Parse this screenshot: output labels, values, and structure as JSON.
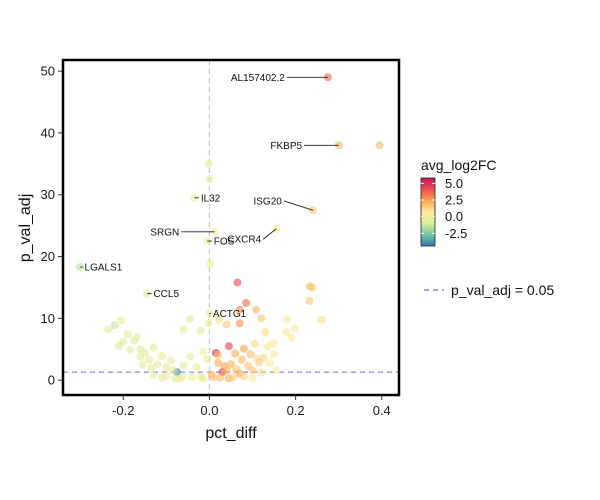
{
  "chart_data": {
    "type": "scatter",
    "xlabel": "pct_diff",
    "ylabel": "p_val_adj",
    "xlim": [
      -0.34,
      0.44
    ],
    "ylim": [
      -2.4,
      51.8
    ],
    "xticks": [
      -0.2,
      0.0,
      0.2,
      0.4
    ],
    "xtick_labels": [
      "-0.2",
      "0.0",
      "0.2",
      "0.4"
    ],
    "yticks": [
      0,
      10,
      20,
      30,
      40,
      50
    ],
    "ytick_labels": [
      "0",
      "10",
      "20",
      "30",
      "40",
      "50"
    ],
    "vline_x": 0,
    "hline": {
      "y": 1.3,
      "label": "p_val_adj = 0.05",
      "color": "#6b6bdb"
    },
    "color_legend": {
      "title": "avg_log2FC",
      "tick_values": [
        5.0,
        2.5,
        0.0,
        -2.5
      ],
      "tick_labels": [
        "5.0",
        "2.5",
        "0.0",
        "-2.5"
      ],
      "range": [
        -4.4,
        5.8
      ],
      "stops": [
        "#c2185b",
        "#e94f4f",
        "#f9a64f",
        "#fee99a",
        "#d7ee9b",
        "#74c7a5",
        "#3f74b4"
      ]
    },
    "labeled_points": [
      {
        "gene": "AL157402.2",
        "x": 0.275,
        "y": 49.0,
        "fc": 3.6,
        "text_x": 0.175,
        "text_y": 49.0
      },
      {
        "gene": "FKBP5",
        "x": 0.3,
        "y": 38.0,
        "fc": 2.0,
        "text_x": 0.215,
        "text_y": 38.0
      },
      {
        "gene": "ISG20",
        "x": 0.24,
        "y": 27.5,
        "fc": 1.7,
        "text_x": 0.168,
        "text_y": 29.0
      },
      {
        "gene": "IL32",
        "x": -0.035,
        "y": 29.5,
        "fc": -0.1,
        "text_x": -0.02,
        "text_y": 29.5
      },
      {
        "gene": "SRGN",
        "x": 0.012,
        "y": 24.0,
        "fc": 0.4,
        "text_x": -0.07,
        "text_y": 24.0
      },
      {
        "gene": "CXCR4",
        "x": 0.155,
        "y": 24.5,
        "fc": 0.6,
        "text_x": 0.12,
        "text_y": 22.8
      },
      {
        "gene": "FOS",
        "x": -0.005,
        "y": 22.5,
        "fc": 0.1,
        "text_x": 0.01,
        "text_y": 22.5
      },
      {
        "gene": "LGALS1",
        "x": -0.3,
        "y": 18.3,
        "fc": -1.5,
        "text_x": -0.29,
        "text_y": 18.3
      },
      {
        "gene": "CCL5",
        "x": -0.145,
        "y": 14.0,
        "fc": -0.6,
        "text_x": -0.13,
        "text_y": 14.0
      },
      {
        "gene": "ACTG1",
        "x": 0.0,
        "y": 10.8,
        "fc": 0.0,
        "text_x": 0.008,
        "text_y": 10.8
      }
    ],
    "points": [
      {
        "x": 0.395,
        "y": 38.0,
        "fc": 2.0
      },
      {
        "x": 0.233,
        "y": 15.2,
        "fc": 1.8
      },
      {
        "x": 0.238,
        "y": 15.0,
        "fc": 1.7
      },
      {
        "x": 0.232,
        "y": 12.8,
        "fc": 1.5
      },
      {
        "x": 0.26,
        "y": 9.8,
        "fc": 1.0
      },
      {
        "x": 0.18,
        "y": 9.8,
        "fc": 0.8
      },
      {
        "x": 0.198,
        "y": 8.4,
        "fc": 0.6
      },
      {
        "x": 0.178,
        "y": 7.8,
        "fc": 0.5
      },
      {
        "x": 0.19,
        "y": 6.9,
        "fc": 0.7
      },
      {
        "x": 0.148,
        "y": 6.0,
        "fc": 0.4
      },
      {
        "x": 0.13,
        "y": 7.8,
        "fc": 1.2
      },
      {
        "x": 0.085,
        "y": 12.5,
        "fc": 3.5
      },
      {
        "x": 0.07,
        "y": 11.4,
        "fc": 3.0
      },
      {
        "x": 0.065,
        "y": 15.8,
        "fc": 4.2
      },
      {
        "x": 0.108,
        "y": 11.4,
        "fc": 2.0
      },
      {
        "x": 0.12,
        "y": 10.0,
        "fc": 1.6
      },
      {
        "x": 0.07,
        "y": 9.2,
        "fc": 2.8
      },
      {
        "x": 0.04,
        "y": 9.0,
        "fc": 1.5
      },
      {
        "x": 0.022,
        "y": 9.8,
        "fc": 1.0
      },
      {
        "x": -0.002,
        "y": 35.0,
        "fc": 0.0
      },
      {
        "x": 0.0,
        "y": 32.5,
        "fc": -0.2
      },
      {
        "x": 0.002,
        "y": 18.8,
        "fc": 0.1
      },
      {
        "x": -0.002,
        "y": 9.2,
        "fc": -0.3
      },
      {
        "x": -0.045,
        "y": 9.9,
        "fc": -0.5
      },
      {
        "x": -0.06,
        "y": 8.2,
        "fc": -0.4
      },
      {
        "x": -0.02,
        "y": 8.0,
        "fc": -0.3
      },
      {
        "x": 0.045,
        "y": 5.5,
        "fc": 4.4
      },
      {
        "x": 0.015,
        "y": 4.4,
        "fc": 5.3
      },
      {
        "x": -0.075,
        "y": 1.3,
        "fc": -4.0
      },
      {
        "x": -0.22,
        "y": 8.9,
        "fc": -1.4
      },
      {
        "x": -0.235,
        "y": 8.2,
        "fc": -0.5
      },
      {
        "x": -0.205,
        "y": 9.7,
        "fc": -0.6
      },
      {
        "x": -0.19,
        "y": 7.4,
        "fc": -0.5
      },
      {
        "x": -0.175,
        "y": 6.4,
        "fc": -0.7
      },
      {
        "x": -0.16,
        "y": 5.0,
        "fc": -0.8
      },
      {
        "x": -0.168,
        "y": 7.0,
        "fc": -0.3
      },
      {
        "x": -0.2,
        "y": 6.2,
        "fc": -0.6
      },
      {
        "x": -0.21,
        "y": 5.6,
        "fc": -0.3
      },
      {
        "x": -0.185,
        "y": 4.9,
        "fc": -0.4
      },
      {
        "x": -0.15,
        "y": 4.4,
        "fc": -0.3
      },
      {
        "x": -0.14,
        "y": 3.3,
        "fc": -0.5
      },
      {
        "x": -0.13,
        "y": 5.3,
        "fc": -0.4
      },
      {
        "x": -0.16,
        "y": 3.8,
        "fc": -0.4
      },
      {
        "x": -0.12,
        "y": 2.6,
        "fc": -0.3
      },
      {
        "x": -0.11,
        "y": 3.9,
        "fc": -0.2
      },
      {
        "x": -0.1,
        "y": 2.1,
        "fc": -0.3
      },
      {
        "x": -0.09,
        "y": 3.2,
        "fc": -0.2
      },
      {
        "x": -0.085,
        "y": 1.6,
        "fc": -0.4
      },
      {
        "x": -0.06,
        "y": 2.4,
        "fc": -0.1
      },
      {
        "x": -0.045,
        "y": 3.8,
        "fc": -0.3
      },
      {
        "x": -0.03,
        "y": 2.1,
        "fc": 0.0
      },
      {
        "x": -0.015,
        "y": 4.6,
        "fc": 0.1
      },
      {
        "x": -0.005,
        "y": 3.4,
        "fc": 0.0
      },
      {
        "x": -0.062,
        "y": 0.6,
        "fc": -0.2
      },
      {
        "x": -0.1,
        "y": 0.7,
        "fc": -0.1
      },
      {
        "x": -0.13,
        "y": 0.9,
        "fc": -0.3
      },
      {
        "x": -0.135,
        "y": 2.0,
        "fc": -0.4
      },
      {
        "x": -0.155,
        "y": 2.5,
        "fc": -0.2
      },
      {
        "x": -0.08,
        "y": 0.3,
        "fc": -0.2
      },
      {
        "x": -0.04,
        "y": 0.5,
        "fc": 0.0
      },
      {
        "x": 0.02,
        "y": 4.1,
        "fc": 1.9
      },
      {
        "x": 0.02,
        "y": 2.8,
        "fc": 2.2
      },
      {
        "x": 0.035,
        "y": 2.3,
        "fc": 2.4
      },
      {
        "x": 0.05,
        "y": 2.6,
        "fc": 2.1
      },
      {
        "x": 0.06,
        "y": 4.3,
        "fc": 2.2
      },
      {
        "x": 0.08,
        "y": 5.1,
        "fc": 2.6
      },
      {
        "x": 0.075,
        "y": 3.3,
        "fc": 1.9
      },
      {
        "x": 0.09,
        "y": 2.3,
        "fc": 1.6
      },
      {
        "x": 0.095,
        "y": 4.2,
        "fc": 1.8
      },
      {
        "x": 0.1,
        "y": 1.6,
        "fc": 1.5
      },
      {
        "x": 0.105,
        "y": 5.9,
        "fc": 1.2
      },
      {
        "x": 0.11,
        "y": 3.5,
        "fc": 0.9
      },
      {
        "x": 0.115,
        "y": 2.9,
        "fc": 1.3
      },
      {
        "x": 0.12,
        "y": 1.2,
        "fc": 1.0
      },
      {
        "x": 0.125,
        "y": 3.6,
        "fc": 1.1
      },
      {
        "x": 0.135,
        "y": 5.5,
        "fc": 0.7
      },
      {
        "x": 0.14,
        "y": 2.7,
        "fc": 0.6
      },
      {
        "x": 0.15,
        "y": 4.2,
        "fc": 0.8
      },
      {
        "x": 0.155,
        "y": 1.6,
        "fc": 0.4
      },
      {
        "x": 0.03,
        "y": 1.3,
        "fc": 4.5
      },
      {
        "x": 0.04,
        "y": 1.6,
        "fc": 2.0
      },
      {
        "x": 0.062,
        "y": 1.8,
        "fc": 1.7
      },
      {
        "x": 0.07,
        "y": 1.1,
        "fc": 2.3
      },
      {
        "x": 0.005,
        "y": 0.9,
        "fc": 2.1
      },
      {
        "x": 0.01,
        "y": 0.5,
        "fc": 1.6
      },
      {
        "x": 0.025,
        "y": 0.4,
        "fc": 1.8
      },
      {
        "x": 0.045,
        "y": 0.3,
        "fc": 2.2
      },
      {
        "x": 0.055,
        "y": 0.5,
        "fc": 1.5
      },
      {
        "x": 0.08,
        "y": 0.6,
        "fc": 1.2
      },
      {
        "x": 0.1,
        "y": 0.3,
        "fc": 0.6
      },
      {
        "x": -0.02,
        "y": 0.6,
        "fc": -0.6
      },
      {
        "x": -0.015,
        "y": 0.2,
        "fc": 0.0
      },
      {
        "x": -0.11,
        "y": 0.4,
        "fc": -0.2
      },
      {
        "x": -0.07,
        "y": 0.2,
        "fc": -0.3
      }
    ]
  }
}
